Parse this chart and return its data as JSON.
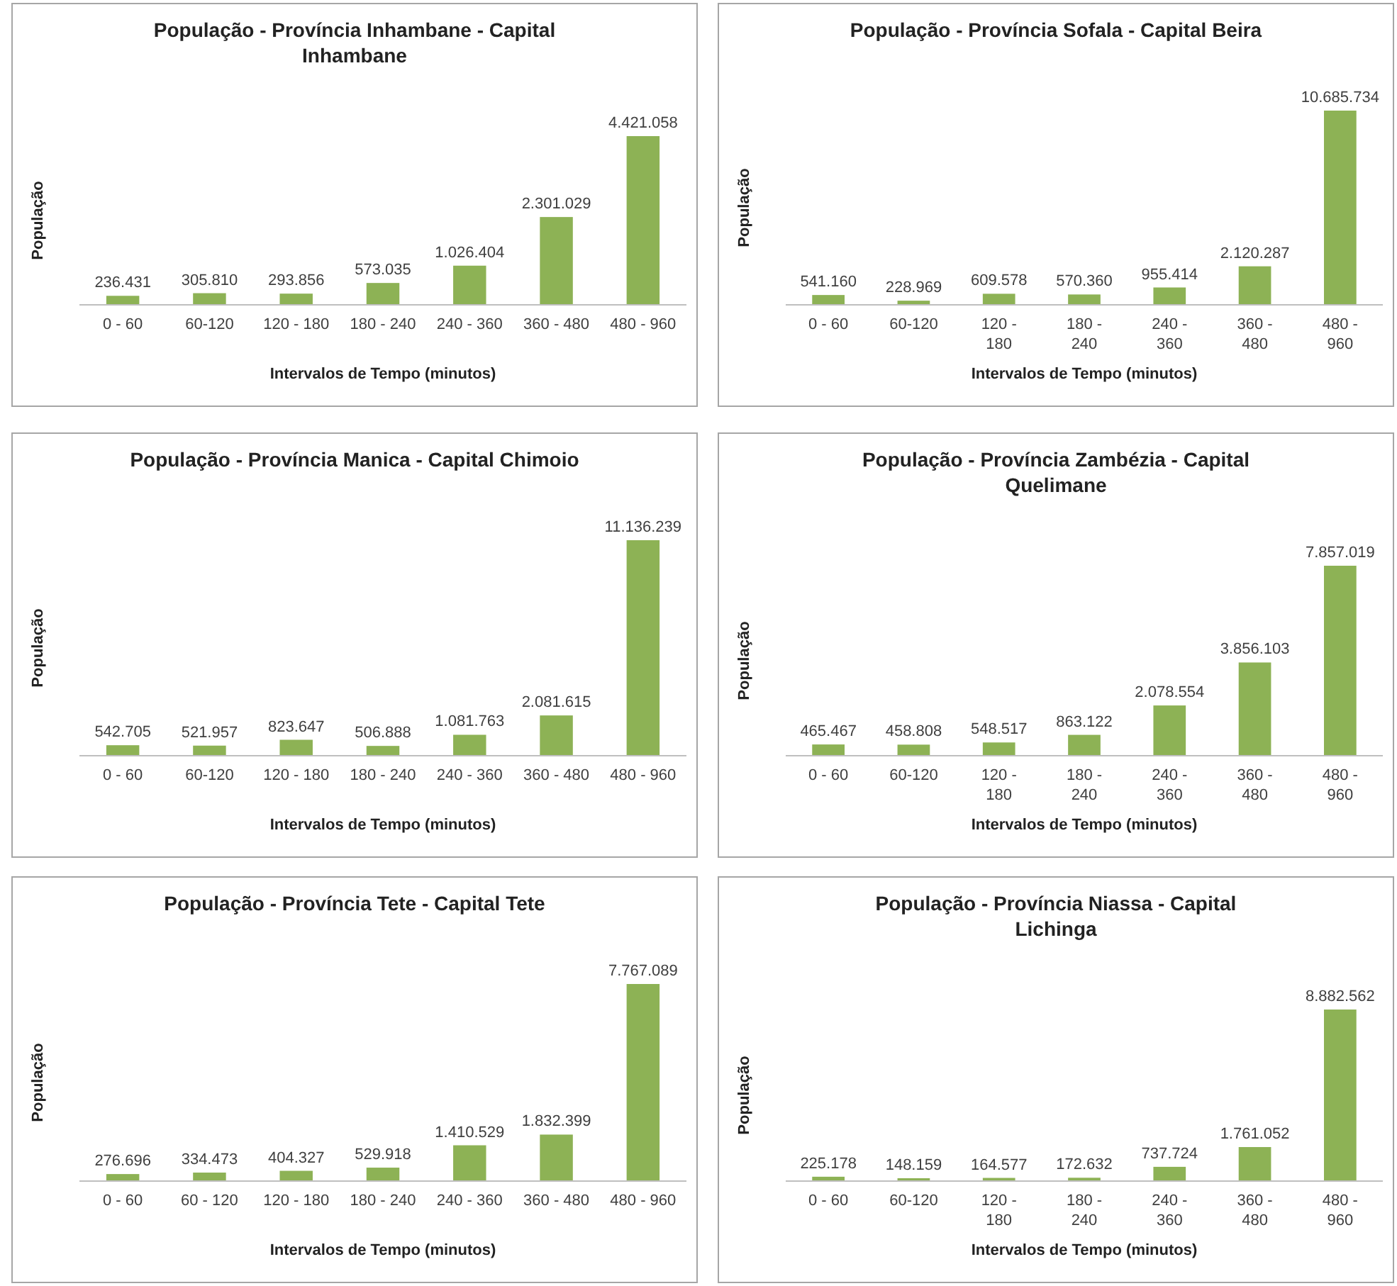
{
  "chart_data": [
    {
      "type": "bar",
      "title": "População - Província Inhambane - Capital Inhambane",
      "xlabel": "Intervalos de Tempo (minutos)",
      "ylabel": "População",
      "categories": [
        "0 - 60",
        "60-120",
        "120 - 180",
        "180 - 240",
        "240 - 360",
        "360 - 480",
        "480 - 960"
      ],
      "values": [
        236431,
        305810,
        293856,
        573035,
        1026404,
        2301029,
        4421058
      ],
      "value_labels": [
        "236.431",
        "305.810",
        "293.856",
        "573.035",
        "1.026.404",
        "2.301.029",
        "4.421.058"
      ],
      "color": "#8db255"
    },
    {
      "type": "bar",
      "title": "População - Província Sofala - Capital Beira",
      "xlabel": "Intervalos de Tempo (minutos)",
      "ylabel": "População",
      "categories": [
        "0 - 60",
        "60-120",
        "120 - 180",
        "180 - 240",
        "240 - 360",
        "360 - 480",
        "480 - 960"
      ],
      "values": [
        541160,
        228969,
        609578,
        570360,
        955414,
        2120287,
        10685734
      ],
      "value_labels": [
        "541.160",
        "228.969",
        "609.578",
        "570.360",
        "955.414",
        "2.120.287",
        "10.685.734"
      ],
      "color": "#8db255"
    },
    {
      "type": "bar",
      "title": "População - Província Manica - Capital Chimoio",
      "xlabel": "Intervalos de Tempo (minutos)",
      "ylabel": "População",
      "categories": [
        "0 - 60",
        "60-120",
        "120 - 180",
        "180 - 240",
        "240 - 360",
        "360 - 480",
        "480 - 960"
      ],
      "values": [
        542705,
        521957,
        823647,
        506888,
        1081763,
        2081615,
        11136239
      ],
      "value_labels": [
        "542.705",
        "521.957",
        "823.647",
        "506.888",
        "1.081.763",
        "2.081.615",
        "11.136.239"
      ],
      "color": "#8db255"
    },
    {
      "type": "bar",
      "title": "População - Província Zambézia - Capital Quelimane",
      "xlabel": "Intervalos de Tempo (minutos)",
      "ylabel": "População",
      "categories": [
        "0 - 60",
        "60-120",
        "120 - 180",
        "180 - 240",
        "240 - 360",
        "360 - 480",
        "480 - 960"
      ],
      "values": [
        465467,
        458808,
        548517,
        863122,
        2078554,
        3856103,
        7857019
      ],
      "value_labels": [
        "465.467",
        "458.808",
        "548.517",
        "863.122",
        "2.078.554",
        "3.856.103",
        "7.857.019"
      ],
      "color": "#8db255"
    },
    {
      "type": "bar",
      "title": "População - Província Tete - Capital Tete",
      "xlabel": "Intervalos de Tempo (minutos)",
      "ylabel": "População",
      "categories": [
        "0 - 60",
        "60 - 120",
        "120 - 180",
        "180 - 240",
        "240 - 360",
        "360 - 480",
        "480 - 960"
      ],
      "values": [
        276696,
        334473,
        404327,
        529918,
        1410529,
        1832399,
        7767089
      ],
      "value_labels": [
        "276.696",
        "334.473",
        "404.327",
        "529.918",
        "1.410.529",
        "1.832.399",
        "7.767.089"
      ],
      "color": "#8db255"
    },
    {
      "type": "bar",
      "title": "População - Província Niassa - Capital Lichinga",
      "xlabel": "Intervalos de Tempo (minutos)",
      "ylabel": "População",
      "categories": [
        "0 - 60",
        "60-120",
        "120 - 180",
        "180 - 240",
        "240 - 360",
        "360 - 480",
        "480 - 960"
      ],
      "values": [
        225178,
        148159,
        164577,
        172632,
        737724,
        1761052,
        8882562
      ],
      "value_labels": [
        "225.178",
        "148.159",
        "164.577",
        "172.632",
        "737.724",
        "1.761.052",
        "8.882.562"
      ],
      "color": "#8db255"
    }
  ]
}
